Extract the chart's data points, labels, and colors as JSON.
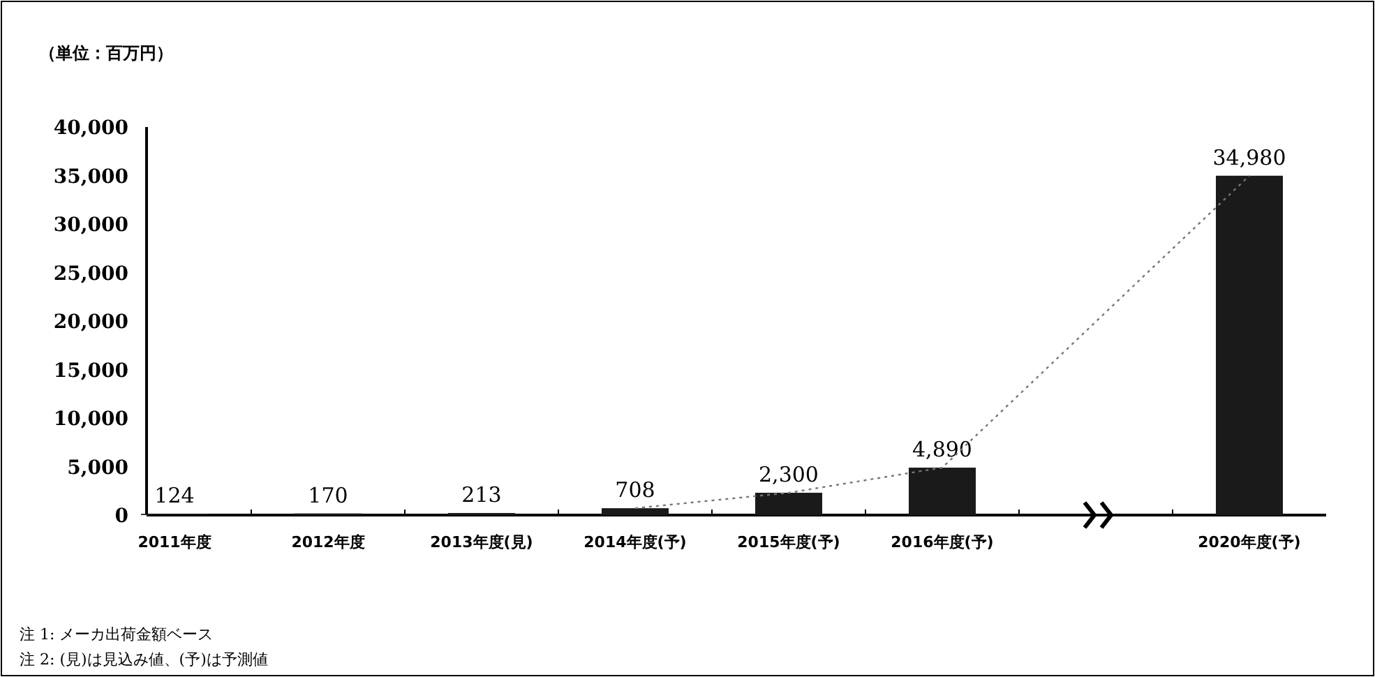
{
  "chart_data": {
    "type": "bar",
    "ylabel": "（単位：百万円）",
    "categories": [
      "2011年度",
      "2012年度",
      "2013年度(見)",
      "2014年度(予)",
      "2015年度(予)",
      "2016年度(予)",
      null,
      "2020年度(予)"
    ],
    "series": [
      {
        "color": "#1a1a1a",
        "values": [
          124,
          170,
          213,
          708,
          2300,
          4890,
          null,
          34980
        ],
        "value_labels": [
          "124",
          "170",
          "213",
          "708",
          "2,300",
          "4,890",
          null,
          "34,980"
        ]
      },
      {
        "type": "line",
        "color": "#777777",
        "line_style": "dotted",
        "x": [
          "2014年度(予)",
          "2015年度(予)",
          "2016年度(予)",
          "2020年度(予)"
        ],
        "values": [
          708,
          2300,
          4890,
          34980
        ]
      }
    ],
    "ylim": [
      0,
      40000
    ],
    "yticks": [
      {
        "value": 0,
        "label": "0"
      },
      {
        "value": 5000,
        "label": "5,000"
      },
      {
        "value": 10000,
        "label": "10,000"
      },
      {
        "value": 15000,
        "label": "15,000"
      },
      {
        "value": 20000,
        "label": "20,000"
      },
      {
        "value": 25000,
        "label": "25,000"
      },
      {
        "value": 30000,
        "label": "30,000"
      },
      {
        "value": 35000,
        "label": "35,000"
      },
      {
        "value": 40000,
        "label": "40,000"
      }
    ],
    "grid": false,
    "annotations": [
      "注 1: メーカ出荷金額ベース",
      "注 2: (見)は見込み値、(予)は予測値"
    ]
  }
}
